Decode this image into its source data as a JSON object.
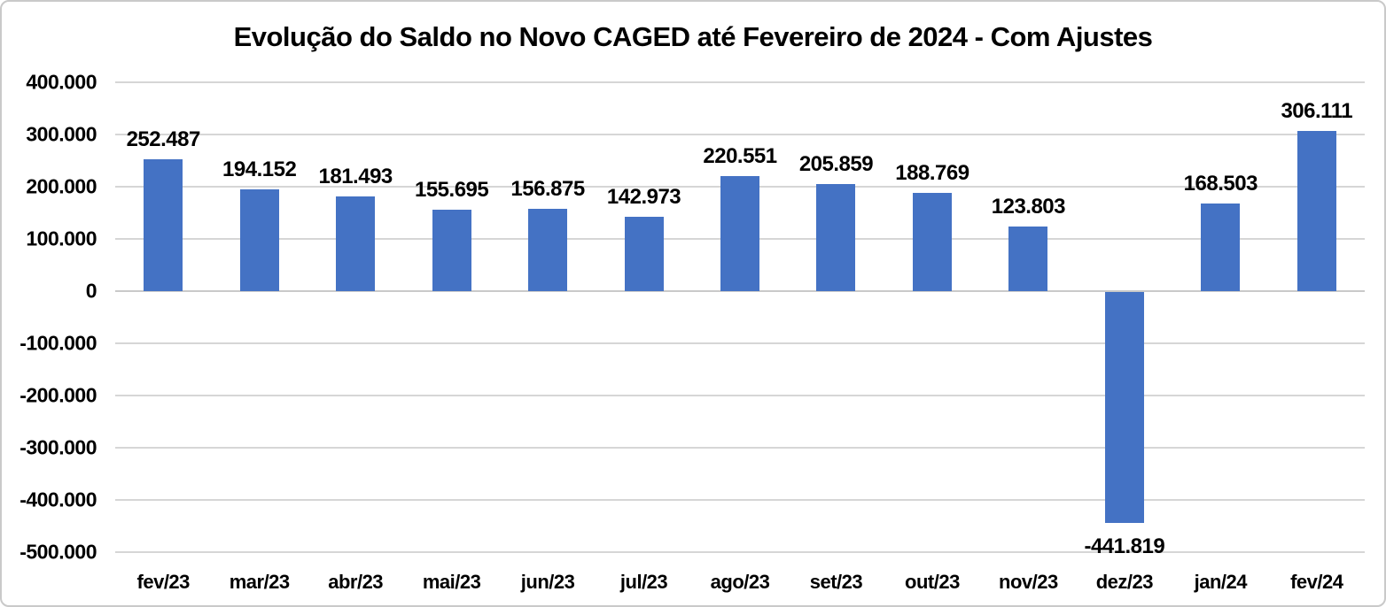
{
  "chart_data": {
    "type": "bar",
    "title": "Evolução do Saldo no Novo CAGED até Fevereiro de 2024 - Com Ajustes",
    "categories": [
      "fev/23",
      "mar/23",
      "abr/23",
      "mai/23",
      "jun/23",
      "jul/23",
      "ago/23",
      "set/23",
      "out/23",
      "nov/23",
      "dez/23",
      "jan/24",
      "fev/24"
    ],
    "values": [
      252487,
      194152,
      181493,
      155695,
      156875,
      142973,
      220551,
      205859,
      188769,
      123803,
      -441819,
      168503,
      306111
    ],
    "data_labels": [
      "252.487",
      "194.152",
      "181.493",
      "155.695",
      "156.875",
      "142.973",
      "220.551",
      "205.859",
      "188.769",
      "123.803",
      "-441.819",
      "168.503",
      "306.111"
    ],
    "y_ticks": [
      {
        "value": 400000,
        "label": "400.000"
      },
      {
        "value": 300000,
        "label": "300.000"
      },
      {
        "value": 200000,
        "label": "200.000"
      },
      {
        "value": 100000,
        "label": "100.000"
      },
      {
        "value": 0,
        "label": "0"
      },
      {
        "value": -100000,
        "label": "-100.000"
      },
      {
        "value": -200000,
        "label": "-200.000"
      },
      {
        "value": -300000,
        "label": "-300.000"
      },
      {
        "value": -400000,
        "label": "-400.000"
      },
      {
        "value": -500000,
        "label": "-500.000"
      }
    ],
    "ylim": [
      -500000,
      400000
    ],
    "xlabel": "",
    "ylabel": "",
    "grid": true,
    "legend": false
  },
  "colors": {
    "bar": "#4472C4",
    "gridline": "#D6D6D6",
    "text": "#000000",
    "frame_border": "#C9C9C9",
    "background": "#FFFFFF"
  }
}
